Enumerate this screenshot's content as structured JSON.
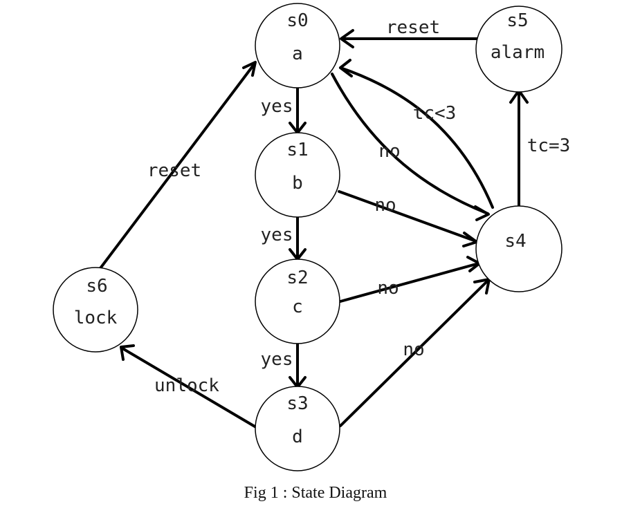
{
  "states": {
    "s0": {
      "id": "s0",
      "label": "a"
    },
    "s1": {
      "id": "s1",
      "label": "b"
    },
    "s2": {
      "id": "s2",
      "label": "c"
    },
    "s3": {
      "id": "s3",
      "label": "d"
    },
    "s4": {
      "id": "s4",
      "label": ""
    },
    "s5": {
      "id": "s5",
      "label": "alarm"
    },
    "s6": {
      "id": "s6",
      "label": "lock"
    }
  },
  "transitions": {
    "s0_s1": "yes",
    "s1_s2": "yes",
    "s2_s3": "yes",
    "s0_s4": "no",
    "s1_s4": "no",
    "s2_s4": "no",
    "s3_s4": "no",
    "s4_s0": "tc<3",
    "s4_s5": "tc=3",
    "s5_s0": "reset",
    "s6_s0": "reset",
    "s3_s6": "unlock"
  },
  "caption": "Fig 1 : State Diagram"
}
